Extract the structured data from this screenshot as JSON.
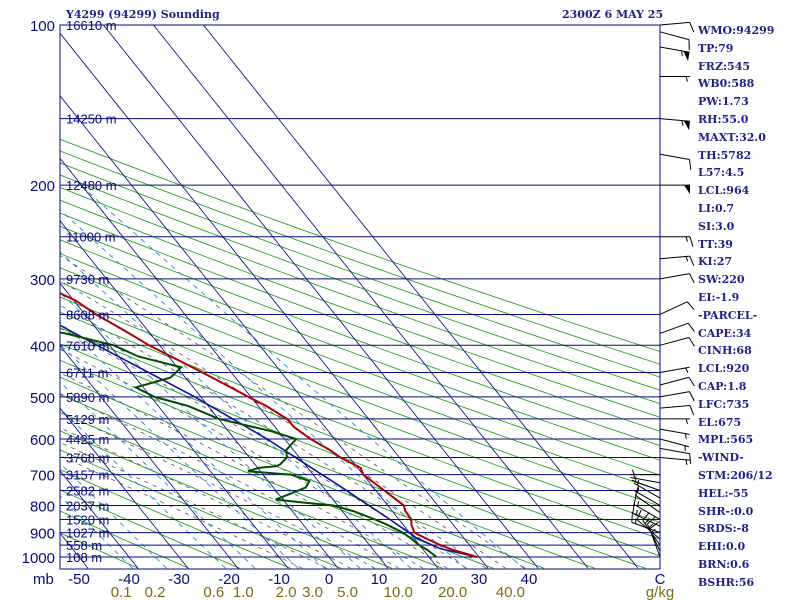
{
  "header": {
    "title": "Y4299 (94299) Sounding",
    "time": "2300Z  6 MAY 25"
  },
  "params": [
    "WMO:94299",
    "TP:79",
    "FRZ:545",
    "WB0:588",
    "PW:1.73",
    "RH:55.0",
    "MAXT:32.0",
    "TH:5782",
    "L57:4.5",
    "LCL:964",
    "LI:0.7",
    "SI:3.0",
    "TT:39",
    "KI:27",
    "SW:220",
    "EI:-1.9",
    "-PARCEL-",
    "CAPE:34",
    "CINH:68",
    "LCL:920",
    "CAP:1.8",
    "LFC:735",
    "EL:675",
    "MPL:565",
    "-WIND-",
    "STM:206/12",
    "HEL:-55",
    "SHR-:0.0",
    "SRDS:-8",
    "EHI:0.0",
    "BRN:0.6",
    "BSHR:56"
  ],
  "colors": {
    "isobar": "#0a0a80",
    "isotherm": "#1a1a8c",
    "dry_adiabat": "#2ca02c",
    "moist_adiabat": "#555555",
    "mixing_ratio": "#1f8fd0",
    "temperature": "#b00000",
    "dewpoint": "#004d00",
    "parcel": "#1010a0",
    "text_blue": "#1f1f8f",
    "text_mixing": "#7a6a10",
    "barb": "#000000"
  },
  "chart_data": {
    "type": "skew-t",
    "units_label": "mb",
    "g_per_kg_label": "g/kg",
    "pressure_levels": [
      100,
      200,
      300,
      400,
      500,
      600,
      700,
      800,
      900,
      1000
    ],
    "pressure_tick_labels": [
      "100",
      "200",
      "300",
      "400",
      "500",
      "600",
      "700",
      "800",
      "900",
      "1000"
    ],
    "temperature_ticks": [
      -50,
      -40,
      -30,
      -20,
      -10,
      0,
      10,
      20,
      30,
      40
    ],
    "temperature_tick_labels": [
      "-50",
      "-40",
      "-30",
      "-20",
      "-10",
      "0",
      "10",
      "20",
      "30",
      "40"
    ],
    "mixing_ratio_ticks": [
      0.1,
      0.2,
      0.6,
      1.0,
      2.0,
      3.0,
      5.0,
      10.0,
      20.0,
      40.0
    ],
    "mixing_ratio_tick_labels": [
      "0.1",
      "0.2",
      "0.6",
      "1.0",
      "2.0",
      "3.0",
      "5.0",
      "10.0",
      "20.0",
      "40.0"
    ],
    "height_labels": [
      {
        "p": 100,
        "label": "16610 m"
      },
      {
        "p": 150,
        "label": "14250 m"
      },
      {
        "p": 200,
        "label": "12480 m"
      },
      {
        "p": 250,
        "label": "11000 m"
      },
      {
        "p": 300,
        "label": "9730 m"
      },
      {
        "p": 350,
        "label": "8608 m"
      },
      {
        "p": 400,
        "label": "7610 m"
      },
      {
        "p": 450,
        "label": "6711 m"
      },
      {
        "p": 500,
        "label": "5890 m"
      },
      {
        "p": 550,
        "label": "5129 m"
      },
      {
        "p": 600,
        "label": "4425 m"
      },
      {
        "p": 650,
        "label": "3768 m"
      },
      {
        "p": 700,
        "label": "3157 m"
      },
      {
        "p": 750,
        "label": "2582 m"
      },
      {
        "p": 800,
        "label": "2037 m"
      },
      {
        "p": 850,
        "label": "1520 m"
      },
      {
        "p": 900,
        "label": "1027 m"
      },
      {
        "p": 950,
        "label": "558 m"
      },
      {
        "p": 1000,
        "label": "108 m"
      }
    ],
    "temperature_profile": [
      [
        1000,
        29.6
      ],
      [
        970,
        26.0
      ],
      [
        950,
        24.2
      ],
      [
        925,
        22.5
      ],
      [
        900,
        21.0
      ],
      [
        870,
        21.6
      ],
      [
        850,
        22.5
      ],
      [
        820,
        22.6
      ],
      [
        800,
        23.2
      ],
      [
        780,
        22.6
      ],
      [
        750,
        21.7
      ],
      [
        720,
        20.7
      ],
      [
        700,
        20.0
      ],
      [
        680,
        20.6
      ],
      [
        650,
        18.2
      ],
      [
        630,
        17.3
      ],
      [
        600,
        15.2
      ],
      [
        570,
        13.8
      ],
      [
        550,
        13.7
      ],
      [
        520,
        11.6
      ],
      [
        500,
        9.5
      ],
      [
        480,
        7.5
      ],
      [
        450,
        4.2
      ],
      [
        430,
        1.8
      ],
      [
        400,
        -2.1
      ],
      [
        380,
        -4.2
      ],
      [
        350,
        -7.8
      ],
      [
        330,
        -9.6
      ],
      [
        300,
        -15.4
      ],
      [
        280,
        -18.2
      ],
      [
        250,
        -24.8
      ],
      [
        230,
        -27.6
      ],
      [
        200,
        -34.5
      ],
      [
        180,
        -37.0
      ],
      [
        150,
        -44.5
      ],
      [
        130,
        -50.2
      ],
      [
        120,
        -54.1
      ],
      [
        110,
        -55.0
      ],
      [
        105,
        -54.4
      ],
      [
        100,
        -53.6
      ]
    ],
    "dewpoint_profile": [
      [
        1000,
        21.5
      ],
      [
        970,
        20.8
      ],
      [
        950,
        19.9
      ],
      [
        925,
        19.4
      ],
      [
        900,
        18.7
      ],
      [
        870,
        16.8
      ],
      [
        850,
        15.2
      ],
      [
        820,
        12.2
      ],
      [
        800,
        9.0
      ],
      [
        790,
        3.5
      ],
      [
        780,
        -1.5
      ],
      [
        760,
        2.5
      ],
      [
        740,
        6.5
      ],
      [
        720,
        8.2
      ],
      [
        710,
        7.0
      ],
      [
        700,
        5.5
      ],
      [
        690,
        -2.5
      ],
      [
        680,
        0.2
      ],
      [
        675,
        4.0
      ],
      [
        670,
        5.0
      ],
      [
        650,
        7.5
      ],
      [
        630,
        8.5
      ],
      [
        600,
        12.3
      ],
      [
        580,
        8.5
      ],
      [
        550,
        0.1
      ],
      [
        520,
        -4.0
      ],
      [
        500,
        -9.3
      ],
      [
        480,
        -11.5
      ],
      [
        460,
        -3.0
      ],
      [
        440,
        0.8
      ],
      [
        420,
        -6.0
      ],
      [
        400,
        -9.2
      ],
      [
        380,
        -17.0
      ],
      [
        360,
        -31.5
      ],
      [
        350,
        -33.0
      ],
      [
        330,
        -29.0
      ],
      [
        300,
        -27.0
      ],
      [
        270,
        -25.5
      ],
      [
        250,
        -20.0
      ],
      [
        240,
        -24.0
      ],
      [
        230,
        -23.0
      ],
      [
        220,
        -33.0
      ],
      [
        210,
        -29.0
      ],
      [
        200,
        -24.0
      ],
      [
        180,
        -28.0
      ],
      [
        150,
        -32.5
      ],
      [
        130,
        -42.5
      ],
      [
        120,
        -47.0
      ],
      [
        110,
        -48.0
      ],
      [
        100,
        -52.0
      ]
    ],
    "parcel_profile": [
      [
        1000,
        29.6
      ],
      [
        964,
        23.5
      ],
      [
        920,
        20.5
      ],
      [
        850,
        18.2
      ],
      [
        800,
        16.2
      ],
      [
        735,
        13.5
      ],
      [
        675,
        10.5
      ],
      [
        600,
        6.5
      ],
      [
        500,
        -1.2
      ],
      [
        400,
        -12.5
      ],
      [
        300,
        -26.5
      ],
      [
        250,
        -36.0
      ],
      [
        200,
        -46.5
      ],
      [
        150,
        -59.0
      ],
      [
        120,
        -66.5
      ]
    ],
    "wind_barbs": [
      {
        "p": 1000,
        "dir": 340,
        "spd": 15
      },
      {
        "p": 975,
        "dir": 335,
        "spd": 15
      },
      {
        "p": 950,
        "dir": 325,
        "spd": 15
      },
      {
        "p": 925,
        "dir": 310,
        "spd": 10
      },
      {
        "p": 900,
        "dir": 290,
        "spd": 15
      },
      {
        "p": 875,
        "dir": 295,
        "spd": 15
      },
      {
        "p": 850,
        "dir": 300,
        "spd": 15
      },
      {
        "p": 825,
        "dir": 305,
        "spd": 10
      },
      {
        "p": 800,
        "dir": 300,
        "spd": 5
      },
      {
        "p": 775,
        "dir": 300,
        "spd": 5
      },
      {
        "p": 750,
        "dir": 290,
        "spd": 5
      },
      {
        "p": 725,
        "dir": 280,
        "spd": 5
      },
      {
        "p": 700,
        "dir": 270,
        "spd": 5
      },
      {
        "p": 650,
        "dir": 95,
        "spd": 5
      },
      {
        "p": 625,
        "dir": 100,
        "spd": 10
      },
      {
        "p": 600,
        "dir": 105,
        "spd": 5
      },
      {
        "p": 575,
        "dir": 100,
        "spd": 5
      },
      {
        "p": 550,
        "dir": 90,
        "spd": 5
      },
      {
        "p": 525,
        "dir": 85,
        "spd": 10
      },
      {
        "p": 500,
        "dir": 80,
        "spd": 10
      },
      {
        "p": 475,
        "dir": 75,
        "spd": 10
      },
      {
        "p": 450,
        "dir": 80,
        "spd": 5
      },
      {
        "p": 400,
        "dir": 75,
        "spd": 10
      },
      {
        "p": 380,
        "dir": 70,
        "spd": 10
      },
      {
        "p": 350,
        "dir": 65,
        "spd": 10
      },
      {
        "p": 300,
        "dir": 80,
        "spd": 10
      },
      {
        "p": 275,
        "dir": 85,
        "spd": 15
      },
      {
        "p": 250,
        "dir": 90,
        "spd": 15
      },
      {
        "p": 200,
        "dir": 90,
        "spd": 50
      },
      {
        "p": 175,
        "dir": 100,
        "spd": 10
      },
      {
        "p": 150,
        "dir": 95,
        "spd": 55
      },
      {
        "p": 125,
        "dir": 90,
        "spd": 5
      },
      {
        "p": 110,
        "dir": 100,
        "spd": 55
      },
      {
        "p": 103,
        "dir": 105,
        "spd": 10
      },
      {
        "p": 100,
        "dir": 85,
        "spd": 10
      }
    ]
  }
}
